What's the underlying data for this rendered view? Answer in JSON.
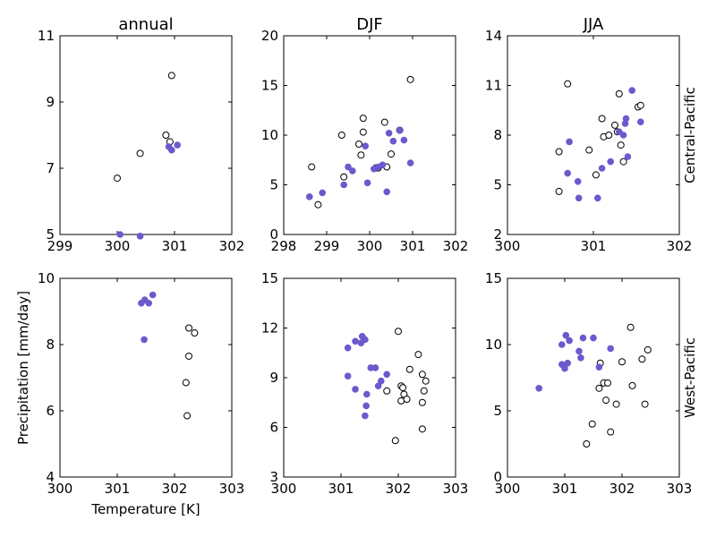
{
  "figure": {
    "xlabel": "Temperature [K]",
    "ylabel": "Precipitation [mm/day]",
    "colors": {
      "filled": "#6a5acd",
      "hollow": "#000000"
    }
  },
  "chart_data": [
    {
      "type": "scatter",
      "row": 0,
      "col": 0,
      "title": "annual",
      "row_label": "",
      "xlim": [
        299,
        302
      ],
      "ylim": [
        5,
        11
      ],
      "xticks": [
        "299",
        "300",
        "301",
        "302"
      ],
      "yticks": [
        "5",
        "7",
        "9",
        "11"
      ],
      "series": [
        {
          "style": "filled",
          "points": [
            [
              300.05,
              5.0
            ],
            [
              300.4,
              4.95
            ],
            [
              300.9,
              7.65
            ],
            [
              300.95,
              7.55
            ],
            [
              301.05,
              7.7
            ]
          ]
        },
        {
          "style": "hollow",
          "points": [
            [
              300.0,
              6.7
            ],
            [
              300.4,
              7.45
            ],
            [
              300.85,
              8.0
            ],
            [
              300.92,
              7.8
            ],
            [
              300.95,
              9.8
            ]
          ]
        }
      ]
    },
    {
      "type": "scatter",
      "row": 0,
      "col": 1,
      "title": "DJF",
      "row_label": "",
      "xlim": [
        298,
        302
      ],
      "ylim": [
        0,
        20
      ],
      "xticks": [
        "298",
        "299",
        "300",
        "301",
        "302"
      ],
      "yticks": [
        "0",
        "5",
        "10",
        "15",
        "20"
      ],
      "series": [
        {
          "style": "filled",
          "points": [
            [
              298.6,
              3.8
            ],
            [
              298.9,
              4.2
            ],
            [
              299.4,
              5.0
            ],
            [
              299.5,
              6.8
            ],
            [
              299.6,
              6.4
            ],
            [
              299.9,
              8.9
            ],
            [
              299.95,
              5.2
            ],
            [
              300.1,
              6.6
            ],
            [
              300.2,
              6.8
            ],
            [
              300.3,
              7.0
            ],
            [
              300.4,
              4.3
            ],
            [
              300.45,
              10.2
            ],
            [
              300.55,
              9.4
            ],
            [
              300.7,
              10.5
            ],
            [
              300.8,
              9.5
            ],
            [
              300.95,
              7.2
            ]
          ]
        },
        {
          "style": "hollow",
          "points": [
            [
              298.65,
              6.8
            ],
            [
              298.8,
              3.0
            ],
            [
              299.35,
              10.0
            ],
            [
              299.4,
              5.8
            ],
            [
              299.75,
              9.1
            ],
            [
              299.8,
              8.0
            ],
            [
              299.85,
              10.3
            ],
            [
              299.85,
              11.7
            ],
            [
              300.15,
              6.7
            ],
            [
              300.2,
              6.7
            ],
            [
              300.35,
              11.3
            ],
            [
              300.4,
              6.8
            ],
            [
              300.5,
              8.1
            ],
            [
              300.7,
              10.5
            ],
            [
              300.95,
              15.6
            ]
          ]
        }
      ]
    },
    {
      "type": "scatter",
      "row": 0,
      "col": 2,
      "title": "JJA",
      "row_label": "Central-Pacific",
      "xlim": [
        300,
        302
      ],
      "ylim": [
        2,
        14
      ],
      "xticks": [
        "300",
        "301",
        "302"
      ],
      "yticks": [
        "2",
        "5",
        "8",
        "11",
        "14"
      ],
      "series": [
        {
          "style": "filled",
          "points": [
            [
              300.7,
              5.7
            ],
            [
              300.72,
              7.6
            ],
            [
              300.82,
              5.2
            ],
            [
              300.83,
              4.2
            ],
            [
              301.05,
              4.2
            ],
            [
              301.1,
              6.0
            ],
            [
              301.2,
              6.4
            ],
            [
              301.3,
              8.2
            ],
            [
              301.35,
              8.0
            ],
            [
              301.37,
              8.7
            ],
            [
              301.38,
              9.0
            ],
            [
              301.4,
              6.7
            ],
            [
              301.45,
              10.7
            ],
            [
              301.55,
              8.8
            ]
          ]
        },
        {
          "style": "hollow",
          "points": [
            [
              300.6,
              4.6
            ],
            [
              300.6,
              7.0
            ],
            [
              300.7,
              11.1
            ],
            [
              300.95,
              7.1
            ],
            [
              301.03,
              5.6
            ],
            [
              301.1,
              9.0
            ],
            [
              301.12,
              7.9
            ],
            [
              301.18,
              8.0
            ],
            [
              301.25,
              8.6
            ],
            [
              301.28,
              8.2
            ],
            [
              301.3,
              10.5
            ],
            [
              301.32,
              7.4
            ],
            [
              301.35,
              6.4
            ],
            [
              301.52,
              9.7
            ],
            [
              301.55,
              9.8
            ]
          ]
        }
      ]
    },
    {
      "type": "scatter",
      "row": 1,
      "col": 0,
      "title": "",
      "row_label": "",
      "xlim": [
        300,
        303
      ],
      "ylim": [
        4,
        10
      ],
      "xticks": [
        "300",
        "301",
        "302",
        "303"
      ],
      "yticks": [
        "4",
        "6",
        "8",
        "10"
      ],
      "series": [
        {
          "style": "filled",
          "points": [
            [
              301.42,
              9.25
            ],
            [
              301.48,
              9.35
            ],
            [
              301.55,
              9.25
            ],
            [
              301.62,
              9.5
            ],
            [
              301.47,
              8.15
            ]
          ]
        },
        {
          "style": "hollow",
          "points": [
            [
              302.25,
              8.5
            ],
            [
              302.35,
              8.35
            ],
            [
              302.25,
              7.65
            ],
            [
              302.2,
              6.85
            ],
            [
              302.22,
              5.85
            ]
          ]
        }
      ]
    },
    {
      "type": "scatter",
      "row": 1,
      "col": 1,
      "title": "",
      "row_label": "",
      "xlim": [
        300,
        303
      ],
      "ylim": [
        3,
        15
      ],
      "xticks": [
        "300",
        "301",
        "302",
        "303"
      ],
      "yticks": [
        "3",
        "6",
        "9",
        "12",
        "15"
      ],
      "series": [
        {
          "style": "filled",
          "points": [
            [
              301.12,
              10.8
            ],
            [
              301.12,
              9.1
            ],
            [
              301.25,
              11.2
            ],
            [
              301.25,
              8.3
            ],
            [
              301.35,
              11.1
            ],
            [
              301.37,
              11.5
            ],
            [
              301.42,
              11.3
            ],
            [
              301.42,
              6.7
            ],
            [
              301.44,
              7.3
            ],
            [
              301.45,
              8.0
            ],
            [
              301.52,
              9.6
            ],
            [
              301.6,
              9.6
            ],
            [
              301.65,
              8.5
            ],
            [
              301.7,
              8.8
            ],
            [
              301.8,
              9.2
            ]
          ]
        },
        {
          "style": "hollow",
          "points": [
            [
              301.8,
              8.2
            ],
            [
              301.95,
              5.2
            ],
            [
              302.0,
              11.8
            ],
            [
              302.05,
              8.5
            ],
            [
              302.08,
              8.4
            ],
            [
              302.05,
              7.6
            ],
            [
              302.1,
              8.0
            ],
            [
              302.15,
              7.7
            ],
            [
              302.2,
              9.5
            ],
            [
              302.35,
              10.4
            ],
            [
              302.42,
              9.2
            ],
            [
              302.42,
              7.5
            ],
            [
              302.45,
              8.2
            ],
            [
              302.48,
              8.8
            ],
            [
              302.42,
              5.9
            ]
          ]
        }
      ]
    },
    {
      "type": "scatter",
      "row": 1,
      "col": 2,
      "title": "",
      "row_label": "West-Pacific",
      "xlim": [
        300,
        303
      ],
      "ylim": [
        0,
        15
      ],
      "xticks": [
        "300",
        "301",
        "302",
        "303"
      ],
      "yticks": [
        "0",
        "5",
        "10",
        "15"
      ],
      "series": [
        {
          "style": "filled",
          "points": [
            [
              300.55,
              6.7
            ],
            [
              300.95,
              8.5
            ],
            [
              300.95,
              10.0
            ],
            [
              301.0,
              8.2
            ],
            [
              301.02,
              10.7
            ],
            [
              301.05,
              8.6
            ],
            [
              301.08,
              10.3
            ],
            [
              301.25,
              9.5
            ],
            [
              301.28,
              9.0
            ],
            [
              301.32,
              10.5
            ],
            [
              301.5,
              10.5
            ],
            [
              301.6,
              8.3
            ],
            [
              301.8,
              9.7
            ]
          ]
        },
        {
          "style": "hollow",
          "points": [
            [
              301.38,
              2.5
            ],
            [
              301.48,
              4.0
            ],
            [
              301.6,
              6.7
            ],
            [
              301.62,
              8.6
            ],
            [
              301.68,
              7.1
            ],
            [
              301.72,
              5.8
            ],
            [
              301.75,
              7.1
            ],
            [
              301.8,
              3.4
            ],
            [
              301.9,
              5.5
            ],
            [
              302.0,
              8.7
            ],
            [
              302.15,
              11.3
            ],
            [
              302.18,
              6.9
            ],
            [
              302.35,
              8.9
            ],
            [
              302.4,
              5.5
            ],
            [
              302.45,
              9.6
            ]
          ]
        }
      ]
    }
  ]
}
